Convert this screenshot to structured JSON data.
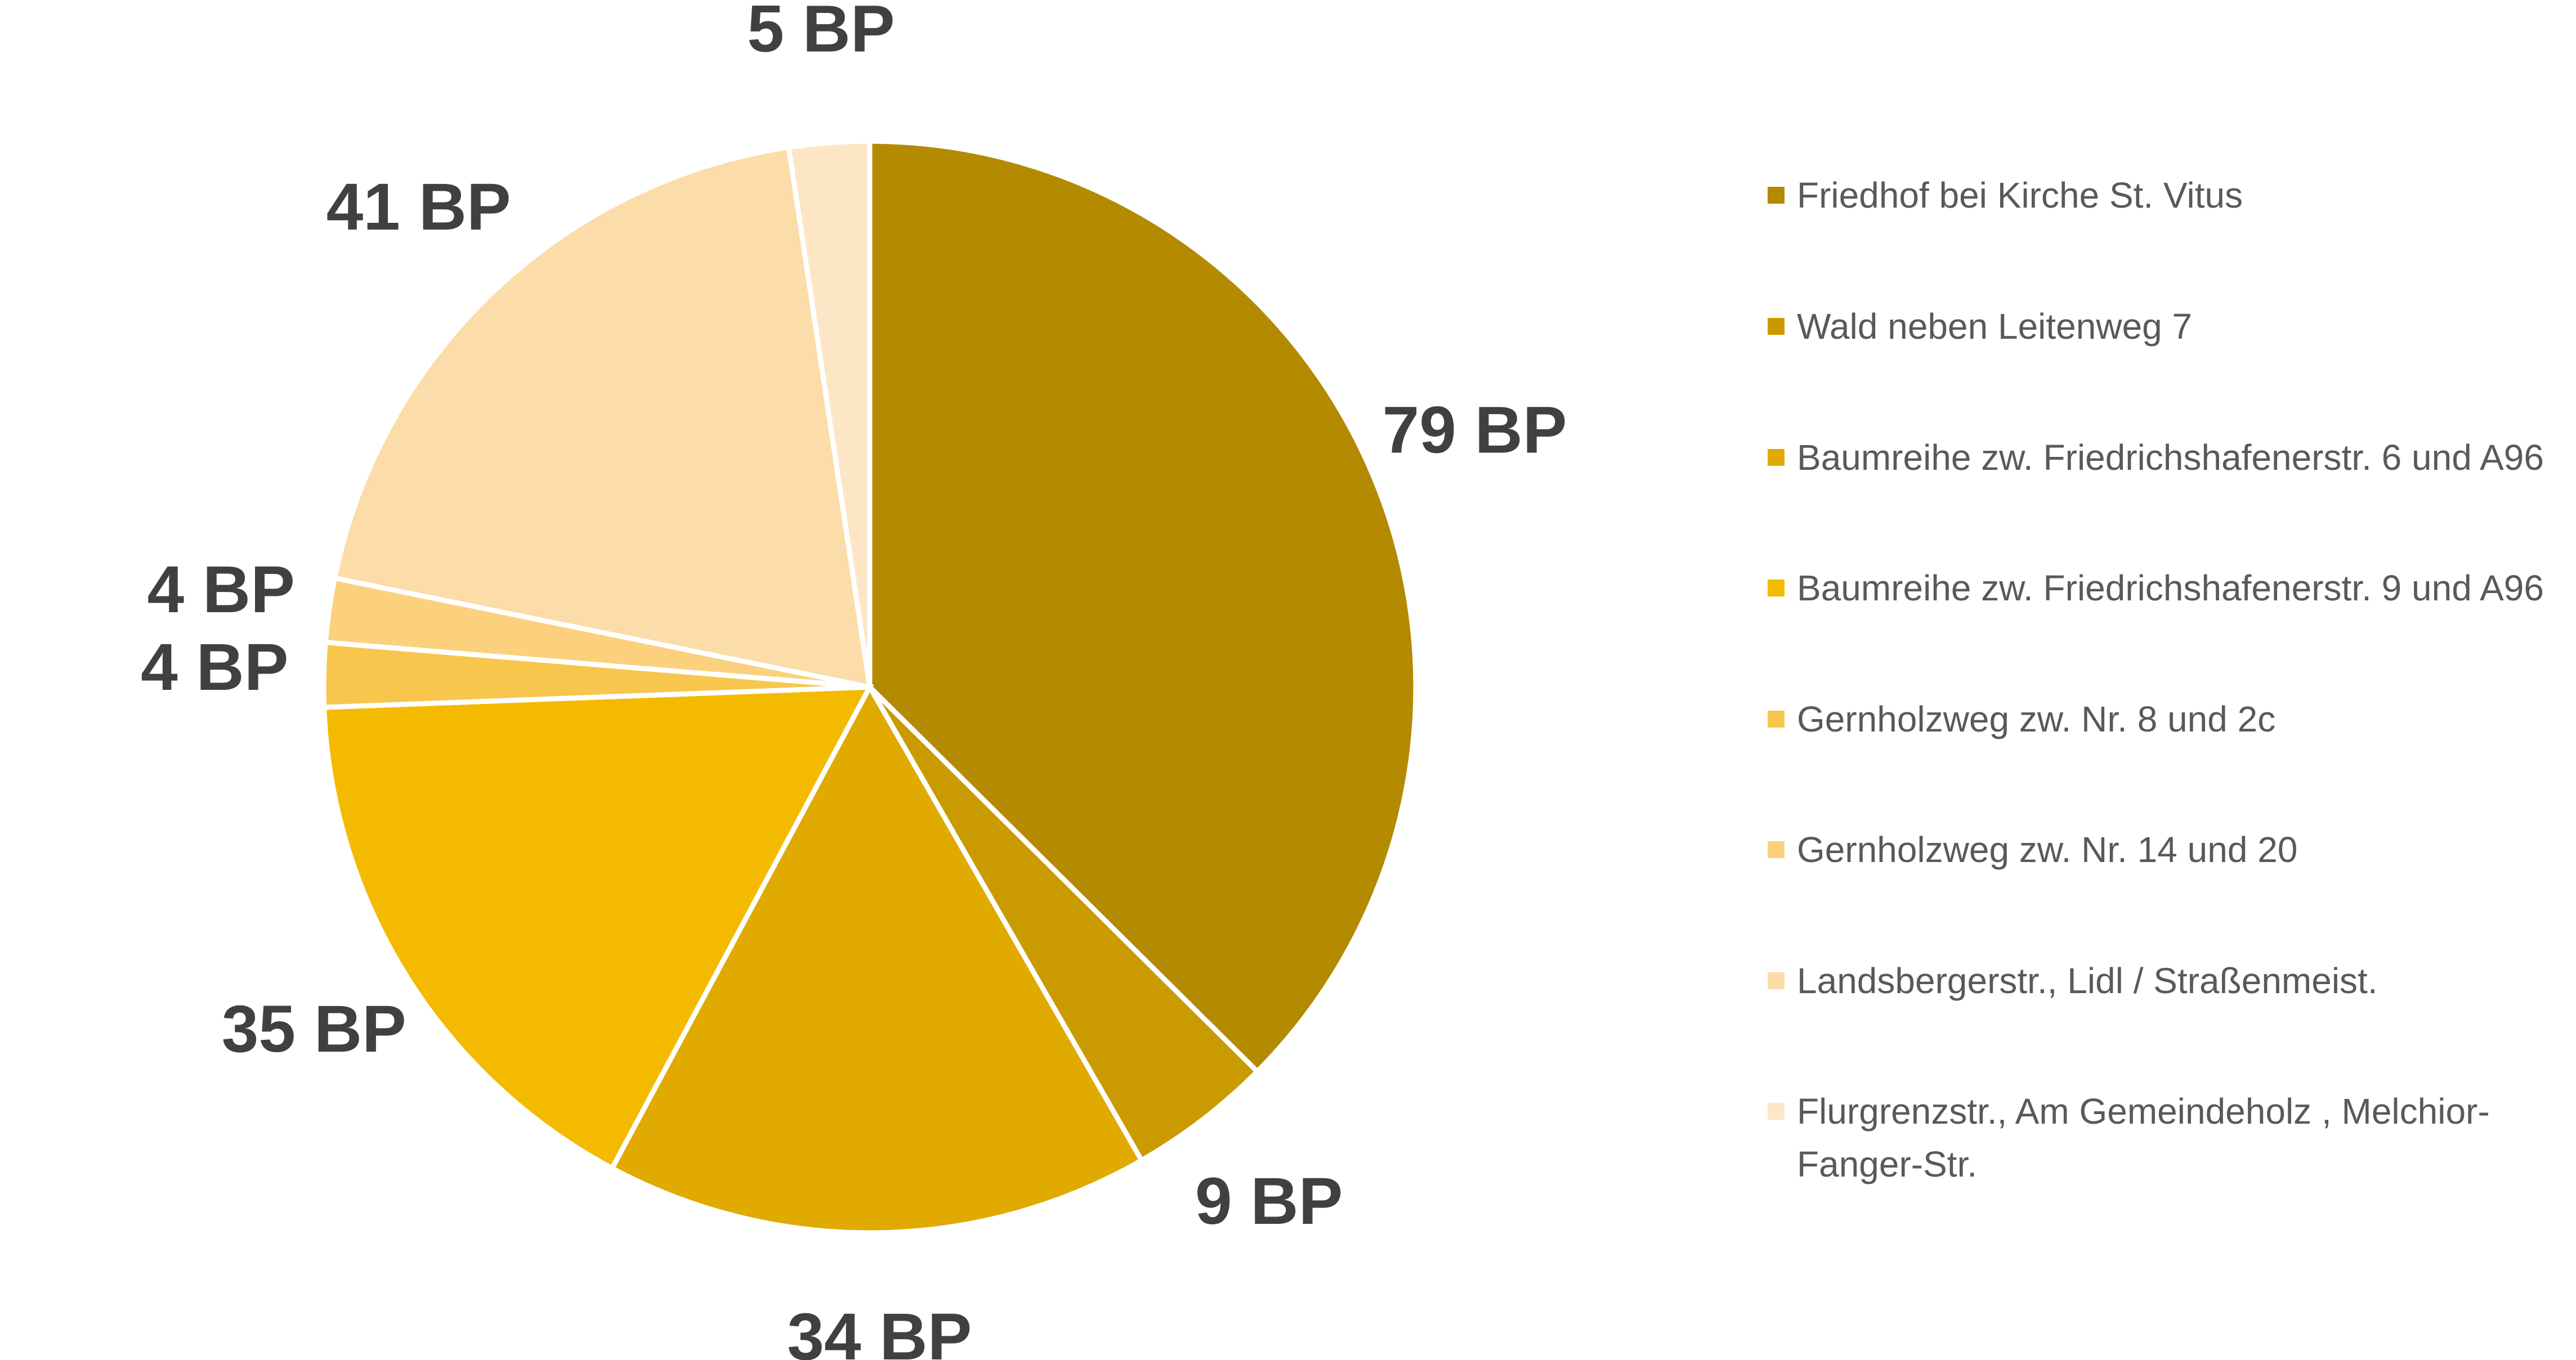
{
  "chart_data": {
    "type": "pie",
    "categories": [
      "Friedhof bei Kirche St. Vitus",
      "Wald neben Leitenweg 7",
      "Baumreihe zw. Friedrichshafenerstr. 6 und A96",
      "Baumreihe zw. Friedrichshafenerstr. 9 und A96",
      "Gernholzweg zw. Nr. 8 und 2c",
      "Gernholzweg zw. Nr. 14 und 20",
      "Landsbergerstr., Lidl / Straßenmeist.",
      "Flurgrenzstr., Am Gemeindeholz , Melchior-Fanger-Str."
    ],
    "values": [
      79,
      9,
      34,
      35,
      4,
      4,
      41,
      5
    ],
    "value_labels": [
      "79 BP",
      "9 BP",
      "34 BP",
      "35 BP",
      "4 BP",
      "4 BP",
      "41 BP",
      "5 BP"
    ],
    "colors": [
      "#b38a00",
      "#c99b00",
      "#e0aa00",
      "#f4ba00",
      "#f8c64c",
      "#fbd17e",
      "#fcdca8",
      "#fde6c6"
    ],
    "legend": "right"
  }
}
